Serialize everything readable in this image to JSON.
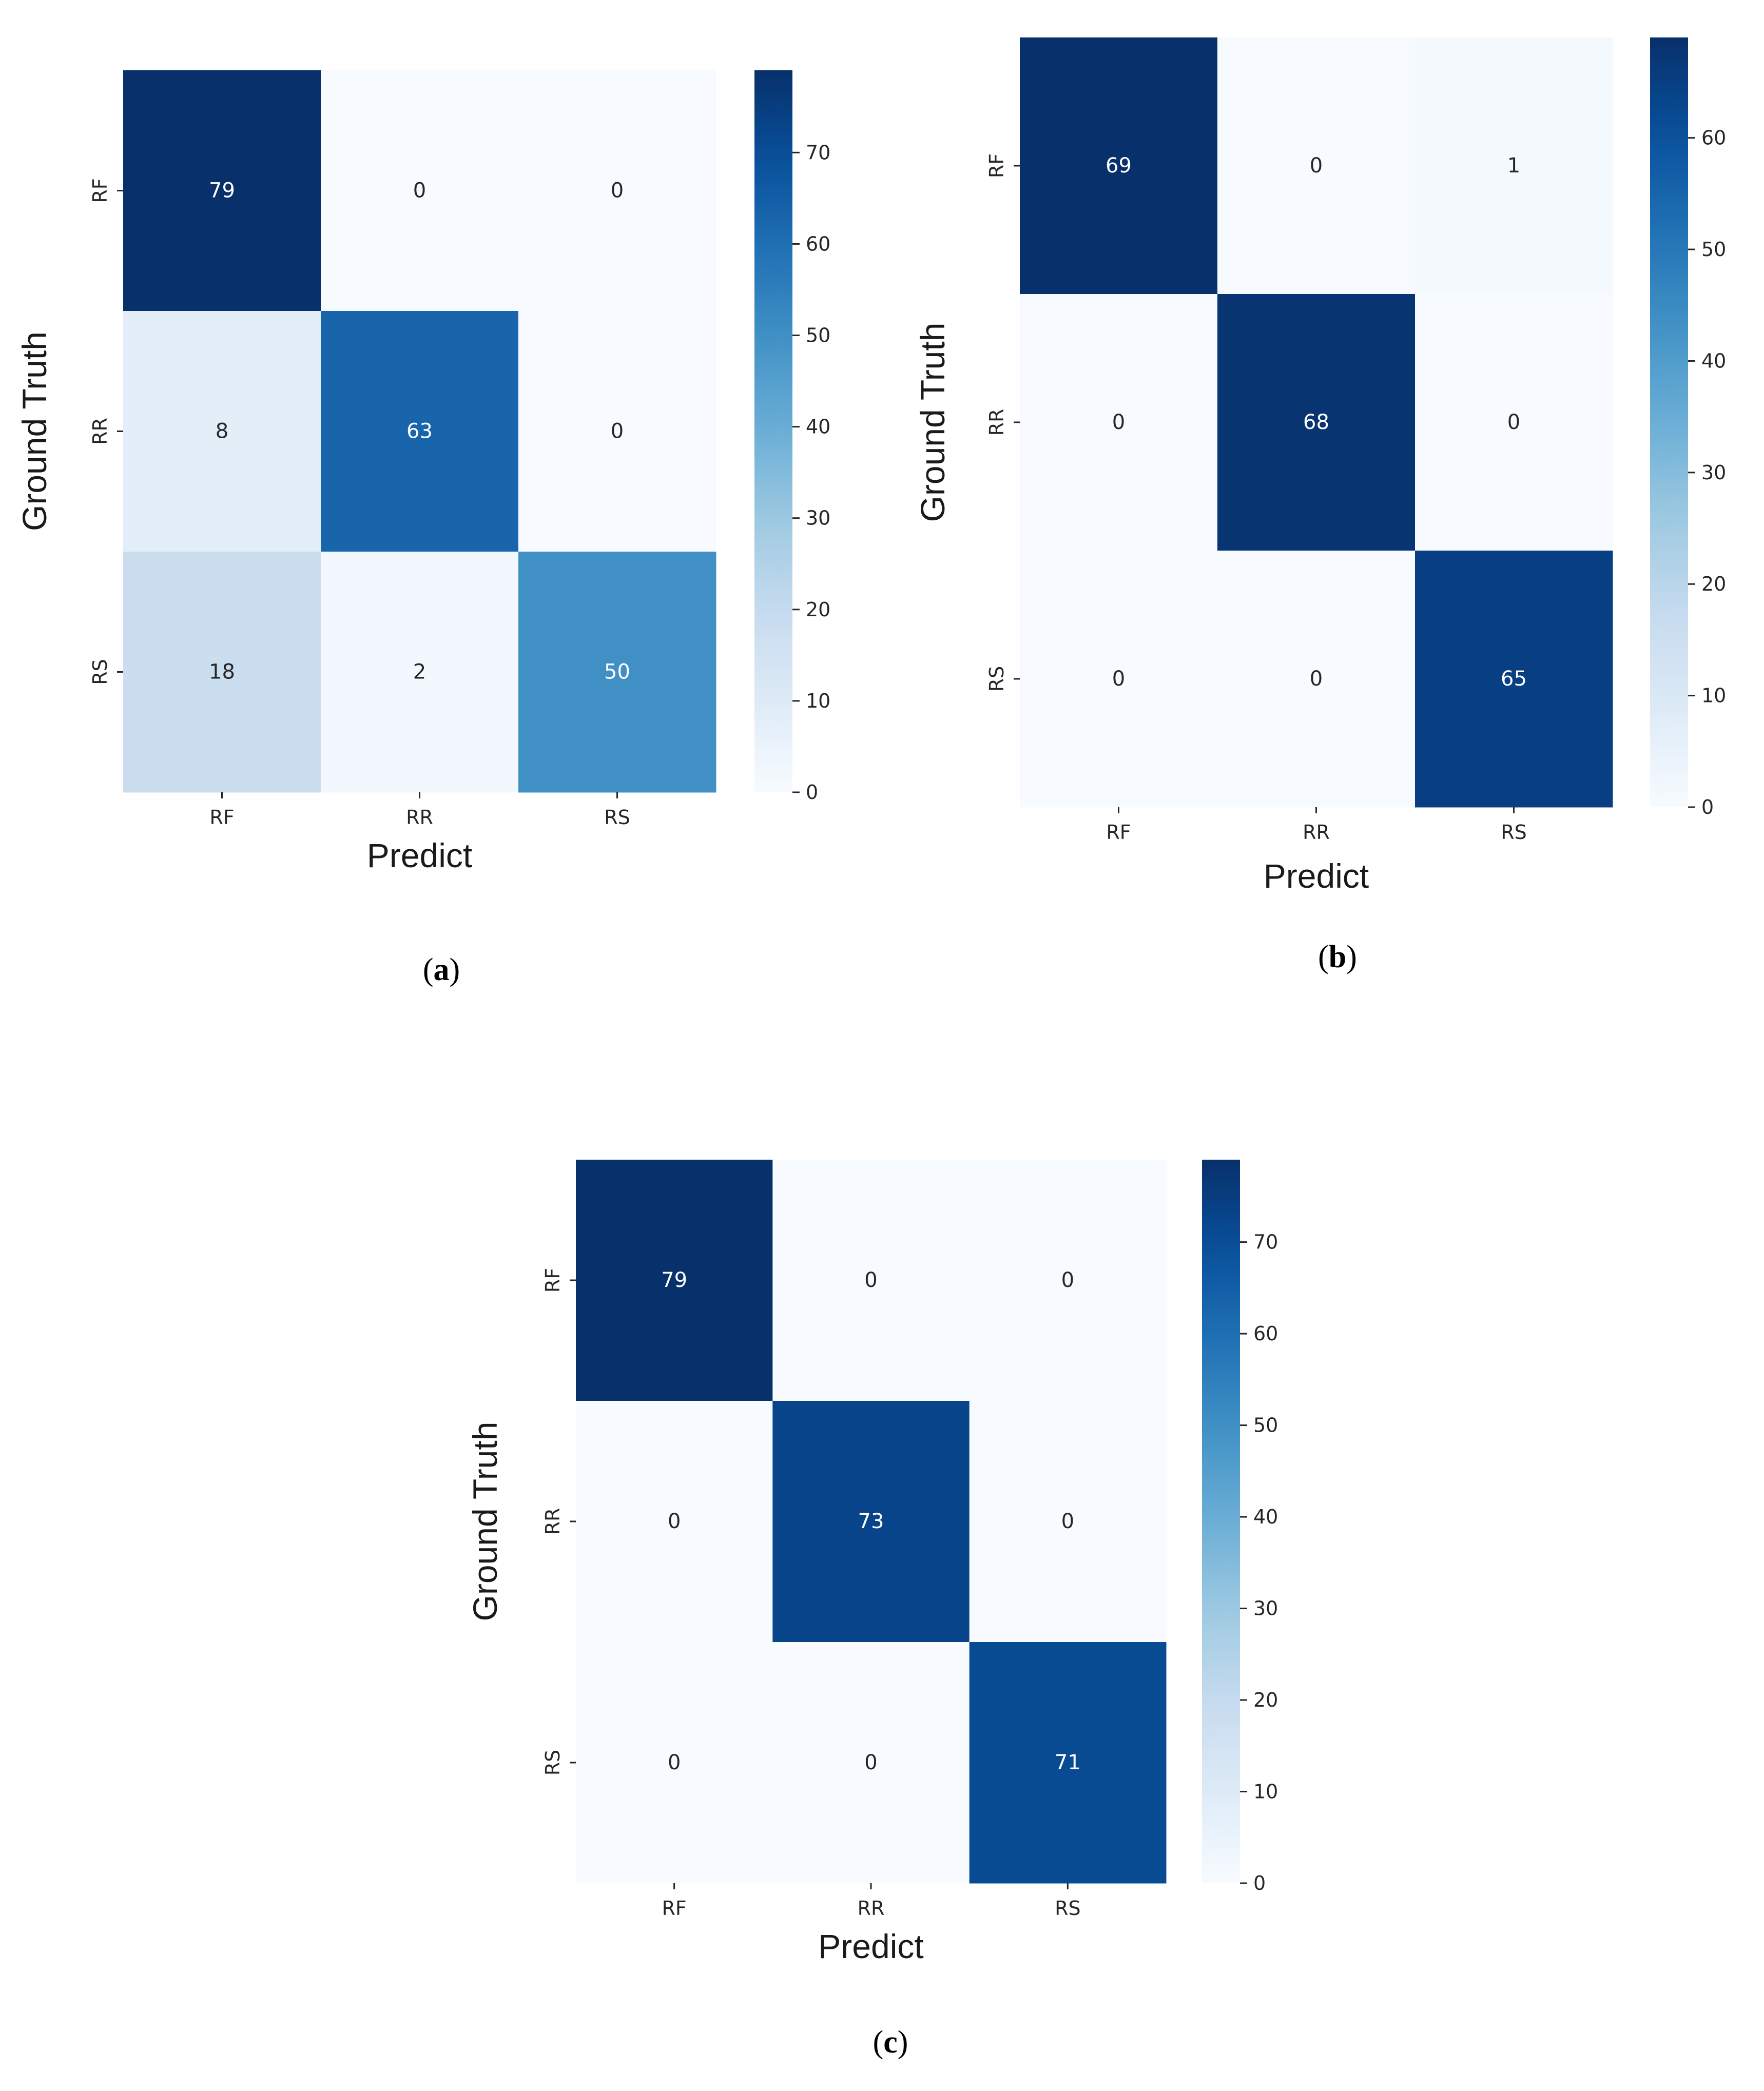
{
  "chart_data": [
    {
      "type": "heatmap",
      "panel": "a",
      "caption_letter": "a",
      "xlabel": "Predict",
      "ylabel": "Ground Truth",
      "x_categories": [
        "RF",
        "RR",
        "RS"
      ],
      "y_categories": [
        "RF",
        "RR",
        "RS"
      ],
      "matrix": [
        [
          79,
          0,
          0
        ],
        [
          8,
          63,
          0
        ],
        [
          18,
          2,
          50
        ]
      ],
      "colorbar": {
        "min": 0,
        "max": 79,
        "ticks": [
          0,
          10,
          20,
          30,
          40,
          50,
          60,
          70
        ]
      },
      "colormap": "Blues"
    },
    {
      "type": "heatmap",
      "panel": "b",
      "caption_letter": "b",
      "xlabel": "Predict",
      "ylabel": "Ground Truth",
      "x_categories": [
        "RF",
        "RR",
        "RS"
      ],
      "y_categories": [
        "RF",
        "RR",
        "RS"
      ],
      "matrix": [
        [
          69,
          0,
          1
        ],
        [
          0,
          68,
          0
        ],
        [
          0,
          0,
          65
        ]
      ],
      "colorbar": {
        "min": 0,
        "max": 69,
        "ticks": [
          0,
          10,
          20,
          30,
          40,
          50,
          60
        ]
      },
      "colormap": "Blues"
    },
    {
      "type": "heatmap",
      "panel": "c",
      "caption_letter": "c",
      "xlabel": "Predict",
      "ylabel": "Ground Truth",
      "x_categories": [
        "RF",
        "RR",
        "RS"
      ],
      "y_categories": [
        "RF",
        "RR",
        "RS"
      ],
      "matrix": [
        [
          79,
          0,
          0
        ],
        [
          0,
          73,
          0
        ],
        [
          0,
          0,
          71
        ]
      ],
      "colorbar": {
        "min": 0,
        "max": 79,
        "ticks": [
          0,
          10,
          20,
          30,
          40,
          50,
          60,
          70
        ]
      },
      "colormap": "Blues"
    }
  ],
  "colors": {
    "blues_stops": [
      "#f7fbff",
      "#deebf7",
      "#c6dbef",
      "#9ecae1",
      "#6baed6",
      "#4292c6",
      "#2171b5",
      "#08519c",
      "#08306b"
    ],
    "dark_text": "#262626",
    "light_text": "#ffffff"
  }
}
